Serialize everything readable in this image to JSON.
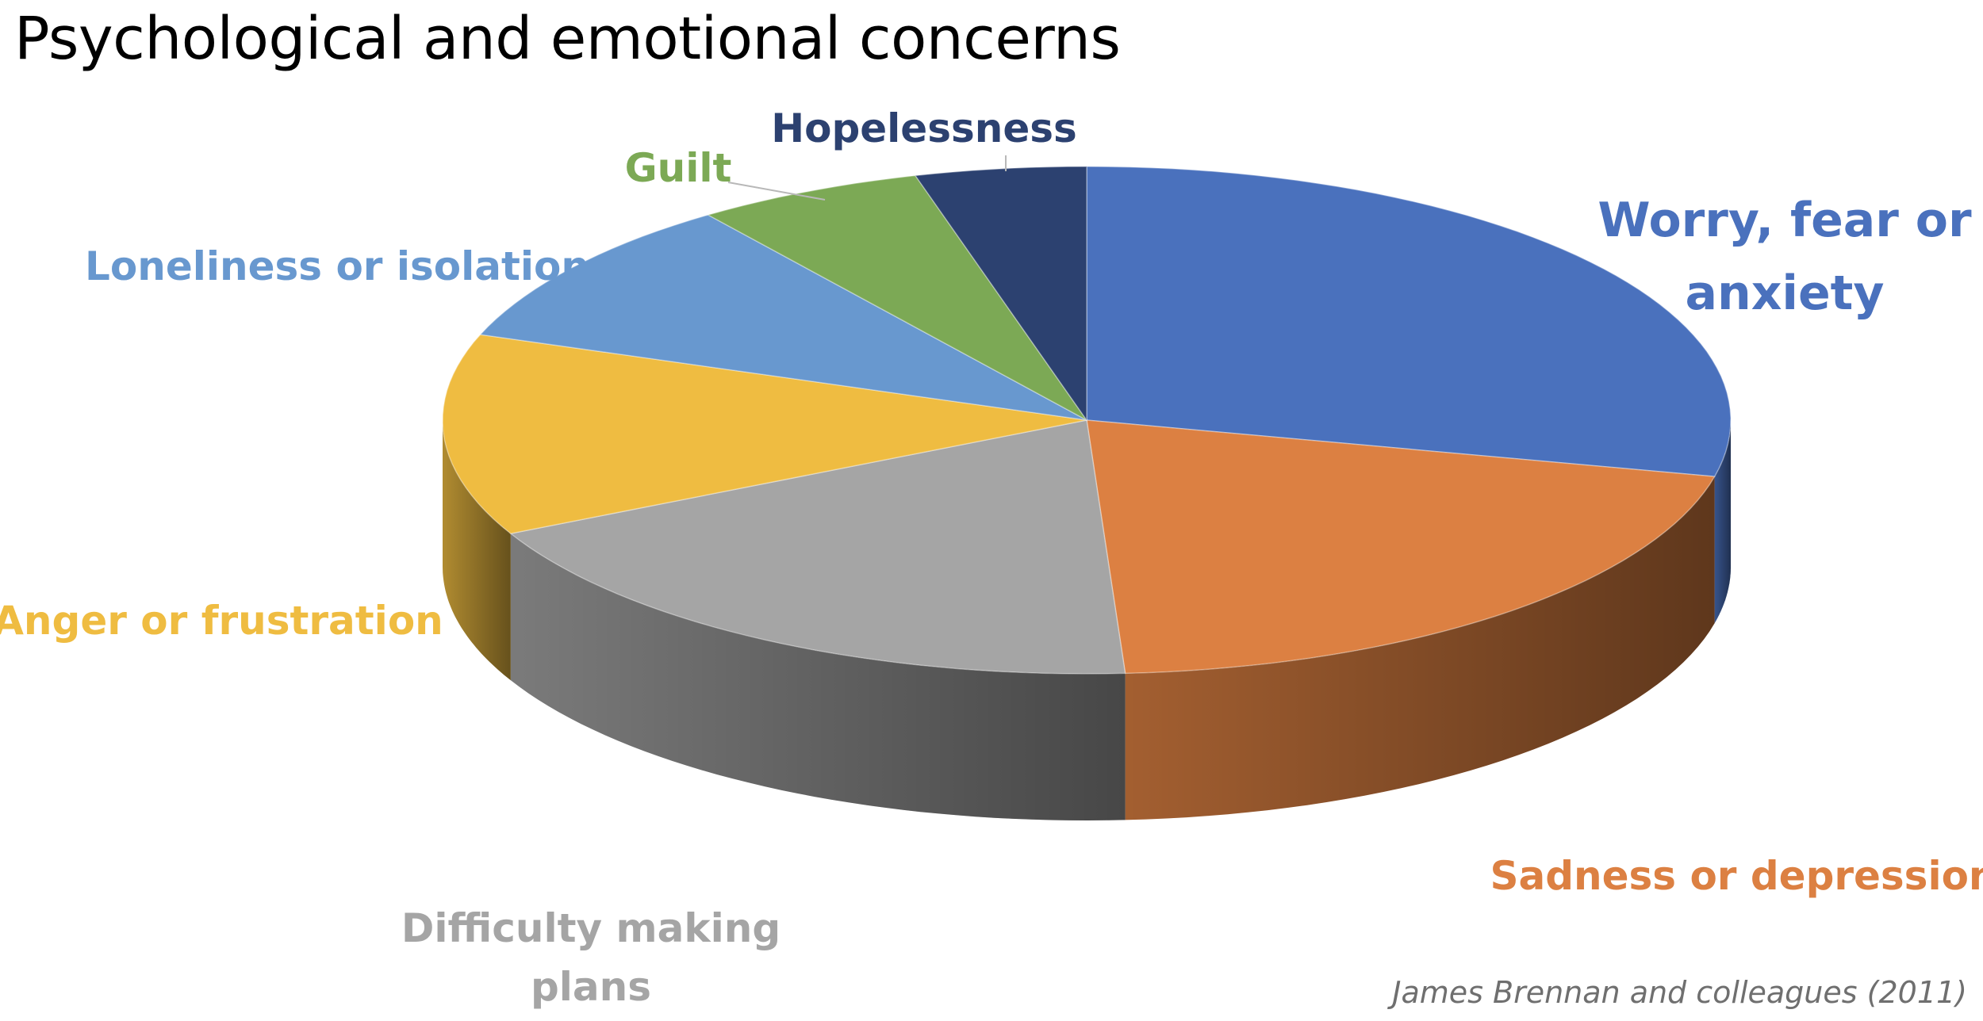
{
  "title": "Psychological and emotional concerns",
  "credit": "James Brennan and colleagues (2011)",
  "colors": {
    "title": "#000000",
    "credit": "#6f6f6f"
  },
  "chart_data": {
    "type": "pie",
    "style": "3d",
    "start_angle_deg": 90,
    "direction": "clockwise",
    "slices": [
      {
        "label": [
          "Worry, fear or",
          "anxiety"
        ],
        "value": 30,
        "color": "#4a71bd",
        "label_color": "#4a71bd"
      },
      {
        "label": [
          "Sadness or depression"
        ],
        "value": 21.5,
        "color": "#dc8042",
        "label_color": "#dc8042"
      },
      {
        "label": [
          "Difficulty making",
          "plans"
        ],
        "value": 19.5,
        "color": "#a5a5a5",
        "label_color": "#a5a5a5"
      },
      {
        "label": [
          "Anger or frustration"
        ],
        "value": 13.5,
        "color": "#efbc41",
        "label_color": "#efbc41"
      },
      {
        "label": [
          "Loneliness or isolation"
        ],
        "value": 10,
        "color": "#6898cf",
        "label_color": "#6898cf"
      },
      {
        "label": [
          "Guilt"
        ],
        "value": 6,
        "color": "#7ca955",
        "label_color": "#7ca955"
      },
      {
        "label": [
          "Hopelessness"
        ],
        "value": 4.5,
        "color": "#2c4170",
        "label_color": "#2c4170"
      }
    ],
    "legend": "none",
    "data_labels": "category names"
  }
}
